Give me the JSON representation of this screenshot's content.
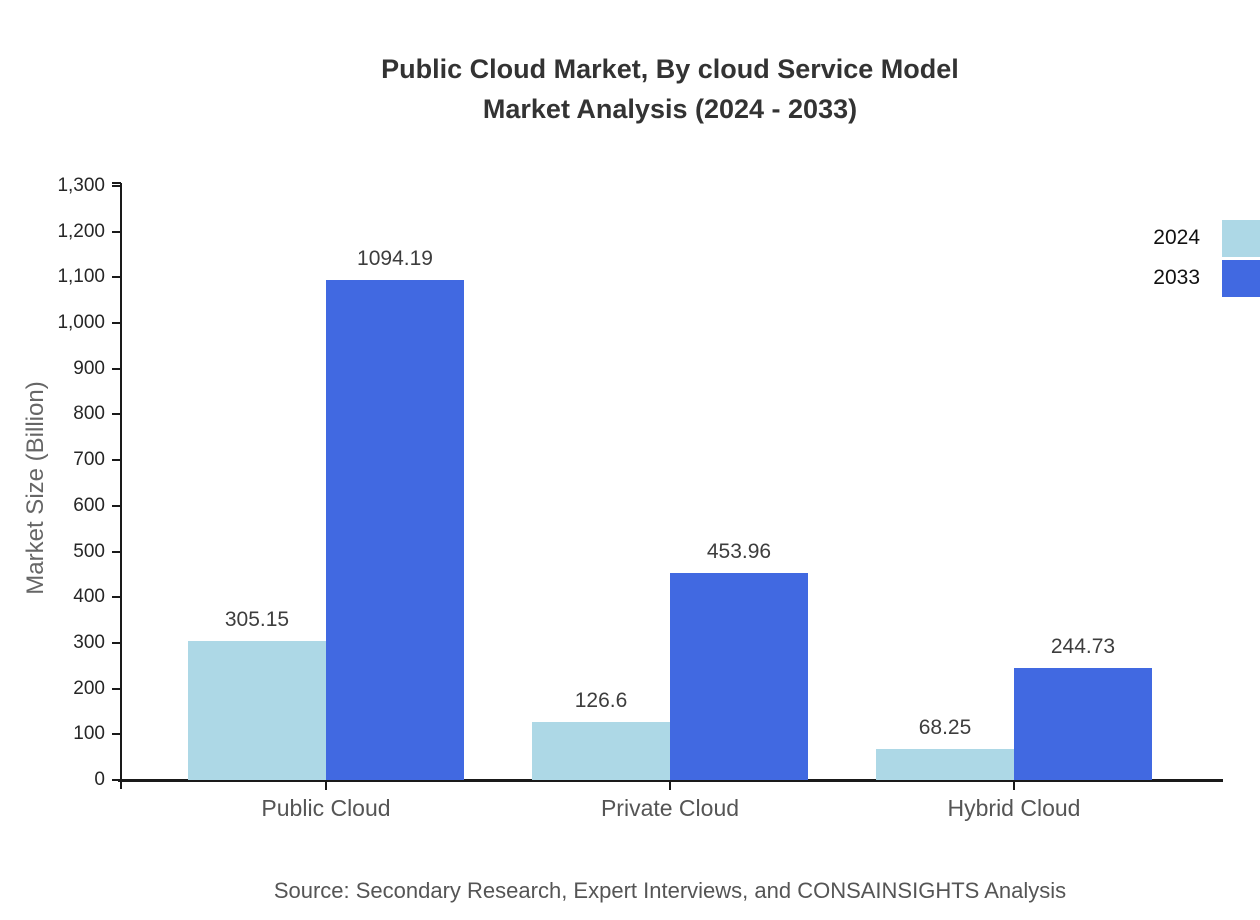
{
  "chart_data": {
    "type": "bar",
    "title_line1": "Public Cloud Market, By cloud Service Model",
    "title_line2": "Market Analysis (2024 - 2033)",
    "title": "Public Cloud Market, By cloud Service Model Market Analysis (2024 - 2033)",
    "ylabel": "Market Size (Billion)",
    "xlabel": "",
    "categories": [
      "Public Cloud",
      "Private Cloud",
      "Hybrid Cloud"
    ],
    "series": [
      {
        "name": "2024",
        "color": "#ADD8E6",
        "values": [
          305.15,
          126.6,
          68.25
        ]
      },
      {
        "name": "2033",
        "color": "#4169E1",
        "values": [
          1094.19,
          453.96,
          244.73
        ]
      }
    ],
    "ylim": [
      0,
      1300
    ],
    "ytick_step": 100,
    "ytick_labels": [
      "0",
      "100",
      "200",
      "300",
      "400",
      "500",
      "600",
      "700",
      "800",
      "900",
      "1,000",
      "1,100",
      "1,200",
      "1,300"
    ],
    "grid": false,
    "legend_position": "top-right",
    "legend_entries": [
      "2024",
      "2033"
    ],
    "axis_color": "#1a1a1a",
    "source": "Source: Secondary Research, Expert Interviews, and CONSAINSIGHTS Analysis"
  }
}
